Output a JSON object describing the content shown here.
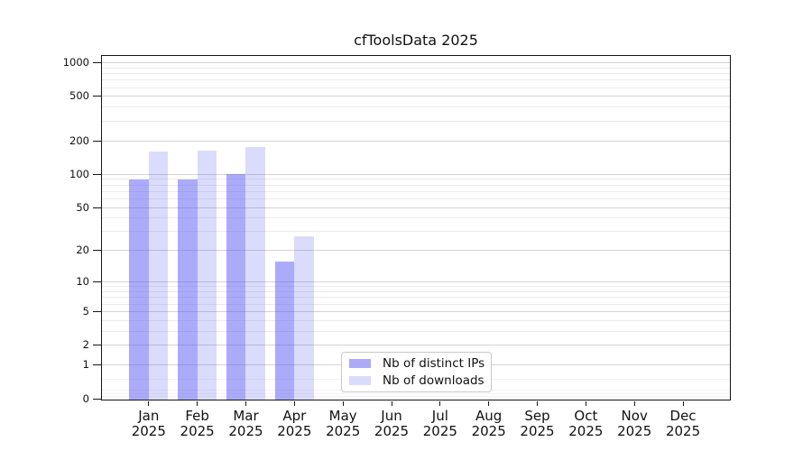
{
  "title": "cfToolsData 2025",
  "chart_data": {
    "type": "bar",
    "title": "cfToolsData 2025",
    "y_scale": "symlog",
    "ylim": [
      0,
      1220
    ],
    "y_ticks": [
      0,
      1,
      2,
      5,
      10,
      20,
      50,
      100,
      200,
      500,
      1000
    ],
    "y_minor_gridlines": [
      0.05,
      0.1,
      0.2,
      0.5,
      3,
      4,
      6,
      7,
      8,
      9,
      30,
      40,
      60,
      70,
      80,
      90,
      300,
      400,
      600,
      700,
      800,
      900
    ],
    "categories": [
      "Jan 2025",
      "Feb 2025",
      "Mar 2025",
      "Apr 2025",
      "May 2025",
      "Jun 2025",
      "Jul 2025",
      "Aug 2025",
      "Sep 2025",
      "Oct 2025",
      "Nov 2025",
      "Dec 2025"
    ],
    "series": [
      {
        "name": "Nb of distinct IPs",
        "color": "rgba(77,77,244,0.47)",
        "values": [
          91,
          91,
          102,
          16,
          null,
          null,
          null,
          null,
          null,
          null,
          null,
          null
        ]
      },
      {
        "name": "Nb of downloads",
        "color": "rgba(77,77,244,0.20)",
        "values": [
          162,
          166,
          179,
          28,
          null,
          null,
          null,
          null,
          null,
          null,
          null,
          null
        ]
      }
    ],
    "legend": {
      "position": "inside-bottom-center",
      "entries": [
        "Nb of distinct IPs",
        "Nb of downloads"
      ]
    },
    "grid": "horizontal",
    "colors": {
      "accent": "#4d4df4",
      "axis": "#151515",
      "text": "#111111",
      "grid_major": "#d4d4d4",
      "grid_minor": "#ebebeb",
      "grid_faint": "#f2f2f2",
      "legend_border": "#c8c8c8",
      "background": "#ffffff"
    }
  }
}
